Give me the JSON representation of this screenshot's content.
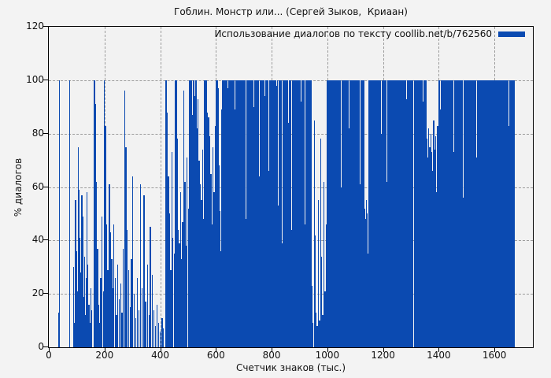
{
  "chart_data": {
    "type": "bar",
    "style": "impulses",
    "title": "Гоблин. Монстр или... (Сергей Зыков,  Криаан)",
    "legend": "Использование диалогов по тексту coollib.net/b/762560",
    "legend_position": "top-right",
    "xlabel": "Счетчик знаков (тыс.)",
    "ylabel": "% диалогов",
    "xlim": [
      0,
      1738
    ],
    "ylim": [
      0,
      120
    ],
    "x_ticks": [
      0,
      200,
      400,
      600,
      800,
      1000,
      1200,
      1400,
      1600
    ],
    "y_ticks": [
      0,
      20,
      40,
      60,
      80,
      100,
      120
    ],
    "grid": true,
    "bar_color": "#0b4ab1",
    "background_color": "#f3f3f3",
    "grid_color": "#9b9b9b",
    "border_color": "#000000",
    "points": [
      [
        33,
        13
      ],
      [
        36,
        100
      ],
      [
        74,
        100
      ],
      [
        88,
        30
      ],
      [
        91,
        9
      ],
      [
        94,
        55
      ],
      [
        97,
        36
      ],
      [
        100,
        21
      ],
      [
        104,
        75
      ],
      [
        107,
        59
      ],
      [
        110,
        41
      ],
      [
        113,
        28
      ],
      [
        117,
        57
      ],
      [
        120,
        49
      ],
      [
        123,
        19
      ],
      [
        126,
        34
      ],
      [
        129,
        12
      ],
      [
        133,
        26
      ],
      [
        136,
        58
      ],
      [
        139,
        31
      ],
      [
        142,
        16
      ],
      [
        146,
        9
      ],
      [
        149,
        22
      ],
      [
        152,
        14
      ],
      [
        162,
        100
      ],
      [
        166,
        91
      ],
      [
        170,
        62
      ],
      [
        173,
        37
      ],
      [
        177,
        16
      ],
      [
        181,
        9
      ],
      [
        185,
        26
      ],
      [
        189,
        49
      ],
      [
        194,
        21
      ],
      [
        198,
        100
      ],
      [
        202,
        83
      ],
      [
        206,
        46
      ],
      [
        210,
        29
      ],
      [
        216,
        61
      ],
      [
        220,
        43
      ],
      [
        224,
        33
      ],
      [
        228,
        22
      ],
      [
        232,
        46
      ],
      [
        236,
        26
      ],
      [
        241,
        12
      ],
      [
        246,
        31
      ],
      [
        251,
        18
      ],
      [
        256,
        24
      ],
      [
        261,
        13
      ],
      [
        266,
        37
      ],
      [
        271,
        96
      ],
      [
        275,
        75
      ],
      [
        280,
        44
      ],
      [
        285,
        29
      ],
      [
        290,
        15
      ],
      [
        295,
        33
      ],
      [
        300,
        64
      ],
      [
        305,
        20
      ],
      [
        310,
        11
      ],
      [
        316,
        26
      ],
      [
        321,
        14
      ],
      [
        328,
        61
      ],
      [
        334,
        22
      ],
      [
        340,
        57
      ],
      [
        346,
        17
      ],
      [
        352,
        31
      ],
      [
        358,
        12
      ],
      [
        363,
        45
      ],
      [
        369,
        27
      ],
      [
        375,
        14
      ],
      [
        381,
        8
      ],
      [
        387,
        16
      ],
      [
        393,
        9
      ],
      [
        399,
        6
      ],
      [
        405,
        11
      ],
      [
        410,
        7
      ],
      [
        417,
        100
      ],
      [
        420,
        100
      ],
      [
        424,
        88
      ],
      [
        428,
        64
      ],
      [
        432,
        50
      ],
      [
        436,
        29
      ],
      [
        440,
        73
      ],
      [
        444,
        41
      ],
      [
        448,
        35
      ],
      [
        452,
        100
      ],
      [
        456,
        100
      ],
      [
        459,
        78
      ],
      [
        463,
        44
      ],
      [
        467,
        39
      ],
      [
        471,
        58
      ],
      [
        475,
        33
      ],
      [
        479,
        47
      ],
      [
        483,
        96
      ],
      [
        487,
        62
      ],
      [
        491,
        38
      ],
      [
        495,
        71
      ],
      [
        499,
        52
      ],
      [
        504,
        100
      ],
      [
        507,
        92
      ],
      [
        510,
        100
      ],
      [
        513,
        87
      ],
      [
        516,
        100
      ],
      [
        519,
        100
      ],
      [
        522,
        94
      ],
      [
        525,
        100
      ],
      [
        528,
        100
      ],
      [
        531,
        82
      ],
      [
        534,
        93
      ],
      [
        538,
        70
      ],
      [
        542,
        61
      ],
      [
        546,
        55
      ],
      [
        550,
        74
      ],
      [
        554,
        48
      ],
      [
        558,
        100
      ],
      [
        561,
        100
      ],
      [
        564,
        100
      ],
      [
        568,
        88
      ],
      [
        572,
        86
      ],
      [
        576,
        79
      ],
      [
        580,
        65
      ],
      [
        584,
        46
      ],
      [
        588,
        75
      ],
      [
        592,
        58
      ],
      [
        596,
        83
      ],
      [
        600,
        100
      ],
      [
        603,
        100
      ],
      [
        606,
        97
      ],
      [
        609,
        68
      ],
      [
        613,
        51
      ],
      [
        617,
        36
      ],
      [
        620,
        89
      ],
      [
        935,
        100
      ],
      [
        938,
        100
      ],
      [
        941,
        100
      ],
      [
        944,
        23
      ],
      [
        947,
        9
      ],
      [
        951,
        85
      ],
      [
        955,
        42
      ],
      [
        958,
        13
      ],
      [
        962,
        8
      ],
      [
        966,
        55
      ],
      [
        970,
        10
      ],
      [
        974,
        78
      ],
      [
        978,
        34
      ],
      [
        982,
        12
      ],
      [
        986,
        62
      ],
      [
        990,
        21
      ],
      [
        994,
        46
      ],
      [
        997,
        100
      ]
    ],
    "segments": [
      {
        "x0": 622,
        "dx": 2,
        "heights": [
          100,
          100,
          72,
          100,
          88,
          100,
          45,
          100,
          100,
          63,
          97,
          100,
          34,
          100,
          81,
          100,
          100,
          58,
          100,
          76,
          100,
          100,
          41,
          89,
          100,
          67,
          100,
          100,
          52,
          95,
          100,
          78,
          100,
          30,
          100,
          100,
          85,
          100,
          61,
          100,
          100,
          74,
          48,
          100,
          92,
          100,
          100,
          56,
          100,
          83,
          100,
          38,
          100,
          100,
          69,
          100,
          90,
          54,
          100,
          100,
          77,
          100,
          43,
          96,
          100,
          100,
          64,
          87,
          100,
          51,
          100,
          100,
          73,
          100,
          100,
          59,
          94,
          100,
          36,
          100,
          82,
          100,
          100,
          66,
          100,
          47,
          100,
          91,
          100,
          100,
          57,
          100,
          79,
          100,
          42,
          100,
          100,
          68,
          98,
          100,
          53,
          100,
          86,
          100,
          100,
          62,
          100,
          39,
          100,
          100,
          75,
          93,
          100,
          49,
          100,
          100,
          71,
          100,
          84,
          55,
          100,
          100,
          65,
          100,
          44,
          100,
          100,
          88,
          60,
          100,
          97,
          100,
          50,
          100,
          80,
          100,
          100,
          70,
          100,
          35,
          100,
          92,
          100,
          100,
          58,
          100,
          100,
          76,
          46,
          100,
          89,
          100,
          100,
          63,
          100,
          100
        ]
      },
      {
        "x0": 1000,
        "dx": 2,
        "heights": [
          100,
          100,
          92,
          100,
          100,
          78,
          100,
          100,
          64,
          100,
          100,
          85,
          100,
          53,
          100,
          100,
          96,
          100,
          71,
          100,
          100,
          88,
          100,
          100,
          60,
          100,
          100,
          79,
          100,
          46,
          100,
          100,
          93,
          100,
          67,
          100,
          100,
          100,
          82,
          56,
          100,
          100,
          74,
          100,
          100,
          90,
          100,
          38,
          100,
          100,
          86,
          100,
          69,
          100,
          100,
          95,
          100,
          100,
          61,
          100,
          42,
          100,
          100,
          77,
          100,
          100,
          52,
          48,
          39,
          55,
          44,
          50,
          35,
          100,
          100,
          83,
          100,
          100,
          68,
          100,
          94,
          100,
          100,
          72,
          100,
          100,
          57,
          100,
          89,
          100,
          100,
          65,
          100,
          43,
          100,
          100,
          80,
          100,
          100,
          91,
          54,
          100,
          100,
          75,
          100,
          100,
          62,
          100,
          100,
          87,
          100,
          49,
          100,
          100,
          70,
          100,
          100,
          96,
          100,
          100,
          84,
          100
        ]
      },
      {
        "x0": 1244,
        "dx": 2,
        "heights": [
          100,
          100,
          95,
          100,
          100,
          88,
          100,
          72,
          100,
          100,
          91,
          100,
          100,
          66,
          100,
          100,
          84,
          100,
          100,
          93,
          58,
          100,
          100,
          79,
          100,
          100,
          87,
          100,
          100,
          70,
          100,
          100,
          0,
          0,
          100,
          100,
          90,
          100,
          63,
          100,
          100,
          96,
          100,
          81,
          100,
          100,
          74,
          100,
          100,
          92,
          100,
          55,
          100,
          100,
          85,
          100,
          78,
          64,
          71,
          82,
          60,
          75,
          68,
          80,
          57,
          73,
          66,
          78,
          85,
          62,
          74,
          70,
          79,
          58,
          72,
          83,
          65,
          76,
          100,
          100,
          89,
          100,
          100,
          94,
          100,
          67,
          100,
          100,
          86,
          100,
          100,
          77,
          100,
          0,
          100,
          100,
          91,
          100,
          61,
          100,
          100,
          88,
          100,
          100,
          73,
          100,
          0,
          100,
          95,
          100,
          100,
          82,
          100,
          69,
          100,
          100,
          90,
          100,
          100,
          84,
          100,
          56,
          100,
          100,
          93,
          100,
          76,
          100,
          100,
          87,
          100,
          100,
          64,
          100,
          100,
          92,
          100,
          78,
          100,
          100,
          59,
          100,
          96,
          100,
          100,
          71,
          100,
          100,
          85,
          100,
          100,
          80,
          100,
          100,
          68,
          100
        ]
      },
      {
        "x0": 1556,
        "dx": 2,
        "heights": [
          100,
          100,
          90,
          100,
          62,
          100,
          100,
          78,
          100,
          45,
          100,
          100,
          86,
          100,
          58,
          100,
          100,
          38,
          100,
          72,
          100,
          100,
          92,
          100,
          65,
          100,
          100,
          81,
          100,
          28,
          100,
          100,
          94,
          100,
          68,
          100,
          100,
          54,
          100,
          88,
          100,
          100,
          75,
          100,
          100,
          96,
          100,
          83,
          100,
          100,
          70,
          100,
          100,
          91,
          100,
          100,
          100,
          52
        ]
      }
    ]
  }
}
